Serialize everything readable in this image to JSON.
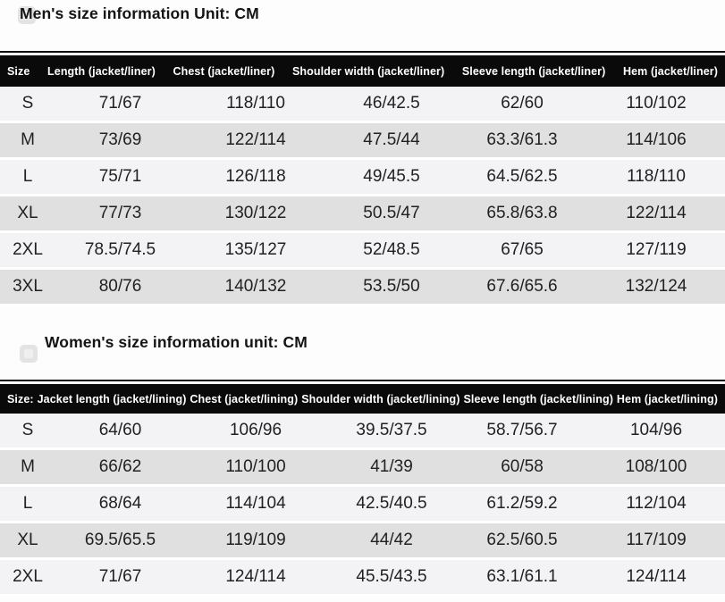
{
  "theme": {
    "header_bg": "#0a0a0a",
    "header_text": "#ffffff",
    "row_light": "#f3f3f5",
    "row_dark": "#e0e0e1",
    "page_bg": "#fdfdfd"
  },
  "men": {
    "title": "Men's size information Unit: CM",
    "columns": [
      "Size",
      "Length (jacket/liner)",
      "Chest (jacket/liner)",
      "Shoulder width (jacket/liner)",
      "Sleeve length (jacket/liner)",
      "Hem (jacket/liner)"
    ],
    "rows": [
      [
        "S",
        "71/67",
        "118/110",
        "46/42.5",
        "62/60",
        "110/102"
      ],
      [
        "M",
        "73/69",
        "122/114",
        "47.5/44",
        "63.3/61.3",
        "114/106"
      ],
      [
        "L",
        "75/71",
        "126/118",
        "49/45.5",
        "64.5/62.5",
        "118/110"
      ],
      [
        "XL",
        "77/73",
        "130/122",
        "50.5/47",
        "65.8/63.8",
        "122/114"
      ],
      [
        "2XL",
        "78.5/74.5",
        "135/127",
        "52/48.5",
        "67/65",
        "127/119"
      ],
      [
        "3XL",
        "80/76",
        "140/132",
        "53.5/50",
        "67.6/65.6",
        "132/124"
      ]
    ]
  },
  "women": {
    "title": "Women's size information unit: CM",
    "columns": [
      "Size:",
      "Jacket length (jacket/lining)",
      "Chest (jacket/lining)",
      "Shoulder width (jacket/lining)",
      "Sleeve length (jacket/lining)",
      "Hem (jacket/lining)"
    ],
    "rows": [
      [
        "S",
        "64/60",
        "106/96",
        "39.5/37.5",
        "58.7/56.7",
        "104/96"
      ],
      [
        "M",
        "66/62",
        "110/100",
        "41/39",
        "60/58",
        "108/100"
      ],
      [
        "L",
        "68/64",
        "114/104",
        "42.5/40.5",
        "61.2/59.2",
        "112/104"
      ],
      [
        "XL",
        "69.5/65.5",
        "119/109",
        "44/42",
        "62.5/60.5",
        "117/109"
      ],
      [
        "2XL",
        "71/67",
        "124/114",
        "45.5/43.5",
        "63.1/61.1",
        "124/114"
      ]
    ]
  }
}
